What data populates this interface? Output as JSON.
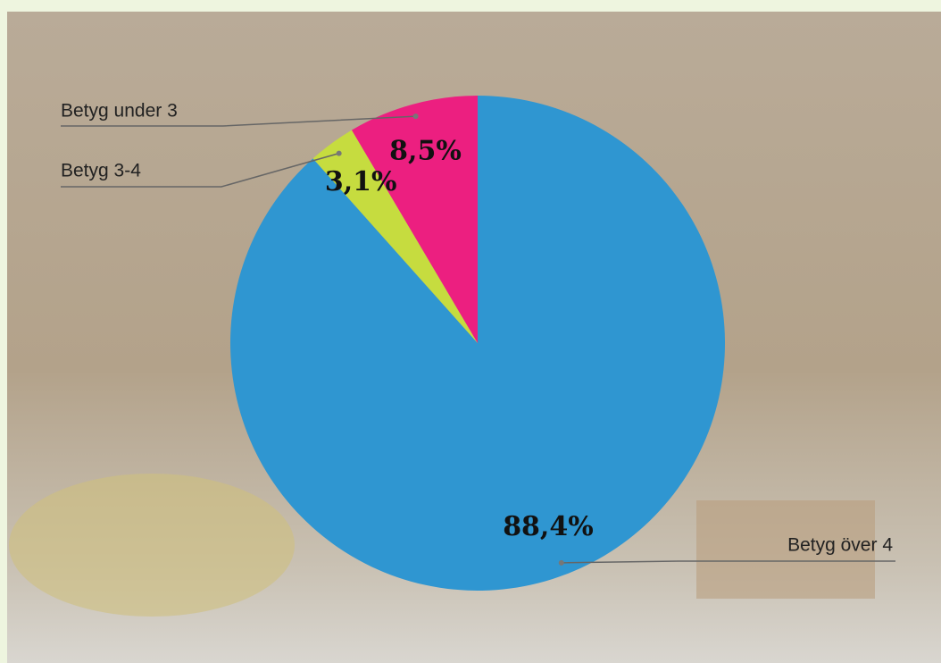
{
  "chart_data": {
    "type": "pie",
    "categories": [
      "Betyg över 4",
      "Betyg 3-4",
      "Betyg under 3"
    ],
    "values": [
      88.4,
      3.1,
      8.5
    ],
    "value_labels": [
      "88,4%",
      "3,1%",
      "8,5%"
    ],
    "colors": [
      "#2f96d1",
      "#c6dc3f",
      "#ec1f80"
    ]
  }
}
